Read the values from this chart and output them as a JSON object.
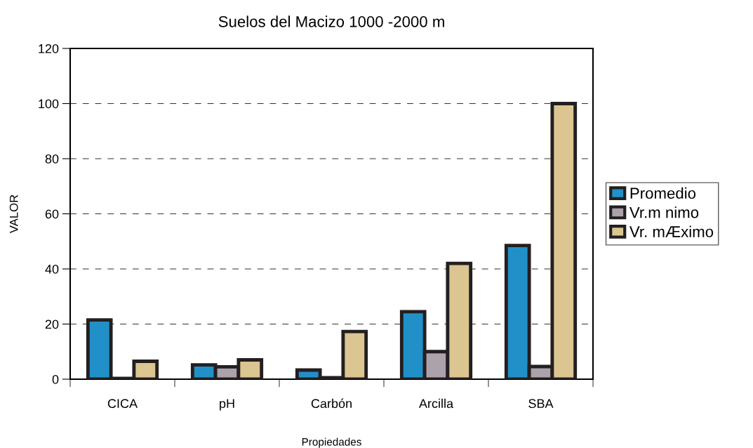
{
  "chart_data": {
    "type": "bar",
    "title": "Suelos del Macizo 1000 -2000 m",
    "xlabel": "Propiedades",
    "ylabel": "VALOR",
    "categories": [
      "CICA",
      "pH",
      "Carbón",
      "Arcilla",
      "SBA"
    ],
    "series": [
      {
        "name": "Promedio",
        "color": "#2290c8",
        "values": [
          21.5,
          5.2,
          3.3,
          24.5,
          48.5
        ]
      },
      {
        "name": "Vr.m nimo",
        "color": "#aba2ab",
        "values": [
          0.3,
          4.5,
          0.5,
          10,
          4.6
        ]
      },
      {
        "name": "Vr. mÆximo",
        "color": "#dbc591",
        "values": [
          6.5,
          7,
          17.3,
          42,
          100
        ]
      }
    ],
    "ylim": [
      0,
      120
    ],
    "yticks": [
      0,
      20,
      40,
      60,
      80,
      100,
      120
    ],
    "grid": "y",
    "legend": "right"
  }
}
